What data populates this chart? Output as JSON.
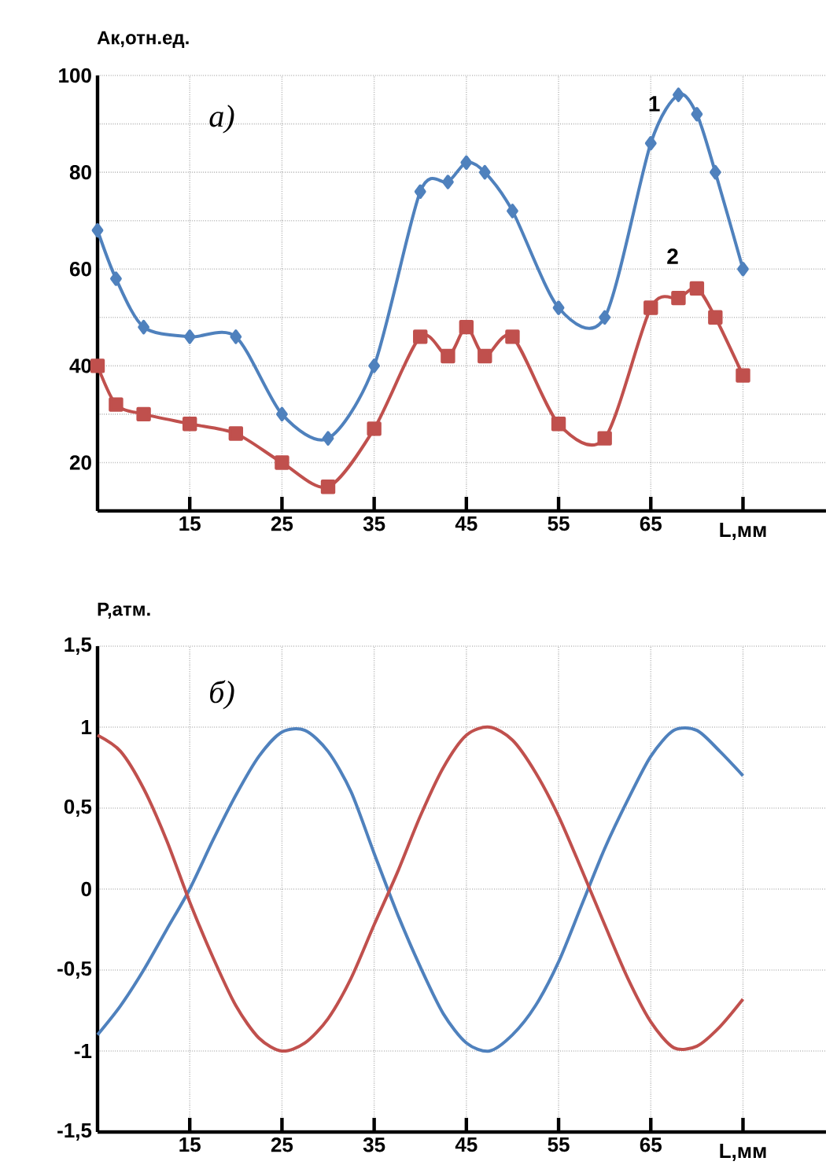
{
  "chart_data": [
    {
      "type": "line",
      "ylabel": "Ак,отн.ед.",
      "xlabel": "L,мм",
      "annotations": [
        "а)"
      ],
      "xlim": [
        5,
        84
      ],
      "xticks": [
        15,
        25,
        35,
        45,
        55,
        65,
        {
          "value": 75,
          "label": null
        }
      ],
      "ylim": [
        10,
        100
      ],
      "yticks": [
        {
          "value": 20,
          "label": "20"
        },
        {
          "value": 30,
          "label": null
        },
        {
          "value": 40,
          "label": "40"
        },
        {
          "value": 50,
          "label": null
        },
        {
          "value": 60,
          "label": "60"
        },
        {
          "value": 70,
          "label": null
        },
        {
          "value": 80,
          "label": "80"
        },
        {
          "value": 90,
          "label": null
        },
        {
          "value": 100,
          "label": "100"
        }
      ],
      "grid": true,
      "legend": false,
      "series": [
        {
          "name": "1",
          "color": "#4f81bd",
          "marker": "diamond",
          "x": [
            5,
            7,
            10,
            15,
            20,
            25,
            30,
            35,
            40,
            43,
            45,
            47,
            50,
            55,
            60,
            65,
            68,
            70,
            72,
            75
          ],
          "values": [
            68,
            58,
            48,
            46,
            46,
            30,
            25,
            40,
            76,
            78,
            82,
            80,
            72,
            52,
            50,
            86,
            96,
            92,
            80,
            60
          ]
        },
        {
          "name": "2",
          "color": "#c0504d",
          "marker": "square",
          "x": [
            5,
            7,
            10,
            15,
            20,
            25,
            30,
            35,
            40,
            43,
            45,
            47,
            50,
            55,
            60,
            65,
            68,
            70,
            72,
            75
          ],
          "values": [
            40,
            32,
            30,
            28,
            26,
            20,
            15,
            27,
            46,
            42,
            48,
            42,
            46,
            28,
            25,
            52,
            54,
            56,
            50,
            38
          ]
        }
      ]
    },
    {
      "type": "line",
      "ylabel": "P,атм.",
      "xlabel": "L,мм",
      "annotations": [
        "б)"
      ],
      "xlim": [
        5,
        84
      ],
      "xticks": [
        15,
        25,
        35,
        45,
        55,
        65,
        {
          "value": 75,
          "label": null
        }
      ],
      "ylim": [
        -1.5,
        1.5
      ],
      "yticks": [
        {
          "value": -1.5,
          "label": "-1,5"
        },
        {
          "value": -1,
          "label": "-1"
        },
        {
          "value": -0.5,
          "label": "-0,5"
        },
        {
          "value": 0,
          "label": "0"
        },
        {
          "value": 0.5,
          "label": "0,5"
        },
        {
          "value": 1,
          "label": "1"
        },
        {
          "value": 1.5,
          "label": "1,5"
        }
      ],
      "grid": true,
      "legend": false,
      "marker": "none",
      "series": [
        {
          "color": "#4f81bd",
          "x": [
            5,
            7.5,
            10,
            12.5,
            15,
            17.5,
            20,
            22.5,
            25,
            27.5,
            30,
            32.5,
            35,
            37.5,
            40,
            42.5,
            45,
            47.5,
            50,
            52.5,
            55,
            57.5,
            60,
            62.5,
            65,
            67.5,
            70,
            72.5,
            75
          ],
          "values": [
            -0.9,
            -0.72,
            -0.5,
            -0.25,
            0,
            0.3,
            0.58,
            0.82,
            0.97,
            0.98,
            0.85,
            0.6,
            0.22,
            -0.15,
            -0.48,
            -0.77,
            -0.95,
            -1,
            -0.9,
            -0.72,
            -0.45,
            -0.1,
            0.25,
            0.55,
            0.82,
            0.98,
            0.98,
            0.85,
            0.7
          ]
        },
        {
          "color": "#c0504d",
          "x": [
            5,
            7.5,
            10,
            12.5,
            15,
            17.5,
            20,
            22.5,
            25,
            27.5,
            30,
            32.5,
            35,
            37.5,
            40,
            42.5,
            45,
            47.5,
            50,
            52.5,
            55,
            57.5,
            60,
            62.5,
            65,
            67.5,
            70,
            72.5,
            75
          ],
          "values": [
            0.95,
            0.85,
            0.62,
            0.3,
            -0.08,
            -0.42,
            -0.72,
            -0.92,
            -1,
            -0.95,
            -0.8,
            -0.55,
            -0.22,
            0.1,
            0.45,
            0.75,
            0.95,
            1,
            0.92,
            0.72,
            0.45,
            0.12,
            -0.22,
            -0.55,
            -0.82,
            -0.98,
            -0.97,
            -0.85,
            -0.68
          ]
        }
      ]
    }
  ]
}
